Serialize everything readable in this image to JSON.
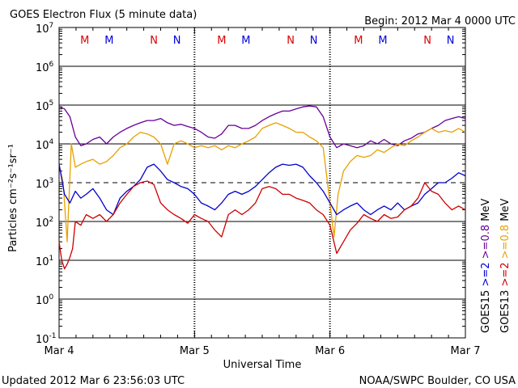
{
  "header": {
    "title": "GOES Electron Flux (5 minute data)",
    "begin": "Begin: 2012 Mar 4 0000 UTC"
  },
  "footer": {
    "updated": "Updated 2012 Mar  6 23:56:03 UTC",
    "credit": "NOAA/SWPC Boulder, CO USA"
  },
  "chart_data": {
    "type": "line",
    "title": "GOES Electron Flux (5 minute data)",
    "xlabel": "Universal Time",
    "ylabel": "Particles cm⁻²s⁻¹sr⁻¹",
    "yscale": "log",
    "ylim": [
      0.1,
      10000000
    ],
    "yticks": [
      {
        "base": "10",
        "exp": "7"
      },
      {
        "base": "10",
        "exp": "6"
      },
      {
        "base": "10",
        "exp": "5"
      },
      {
        "base": "10",
        "exp": "4"
      },
      {
        "base": "10",
        "exp": "3"
      },
      {
        "base": "10",
        "exp": "2"
      },
      {
        "base": "10",
        "exp": "1"
      },
      {
        "base": "10",
        "exp": "0"
      },
      {
        "base": "10",
        "exp": "-1"
      }
    ],
    "xlim_days": [
      0,
      3
    ],
    "xticks": [
      "Mar 4",
      "Mar 5",
      "Mar 6",
      "Mar 7"
    ],
    "grid": true,
    "threshold_line": 1000,
    "markers": [
      {
        "label": "M",
        "day": 0.19,
        "color": "#dd0000"
      },
      {
        "label": "M",
        "day": 0.37,
        "color": "#0000dd"
      },
      {
        "label": "N",
        "day": 0.7,
        "color": "#dd0000"
      },
      {
        "label": "N",
        "day": 0.87,
        "color": "#0000dd"
      },
      {
        "label": "M",
        "day": 1.2,
        "color": "#dd0000"
      },
      {
        "label": "M",
        "day": 1.38,
        "color": "#0000dd"
      },
      {
        "label": "N",
        "day": 1.71,
        "color": "#dd0000"
      },
      {
        "label": "N",
        "day": 1.88,
        "color": "#0000dd"
      },
      {
        "label": "M",
        "day": 2.21,
        "color": "#dd0000"
      },
      {
        "label": "M",
        "day": 2.39,
        "color": "#0000dd"
      },
      {
        "label": "N",
        "day": 2.72,
        "color": "#dd0000"
      },
      {
        "label": "N",
        "day": 2.89,
        "color": "#0000dd"
      }
    ],
    "legend": [
      {
        "label": "GOES15",
        "color": "#000000"
      },
      {
        "label": ">=2",
        "color": "#0000cc"
      },
      {
        "label": ">=0.8",
        "color": "#660099"
      },
      {
        "label": "MeV",
        "color": "#000000"
      },
      {
        "label": "GOES13",
        "color": "#000000"
      },
      {
        "label": ">=2",
        "color": "#cc0000"
      },
      {
        "label": ">=0.8",
        "color": "#e8a000"
      },
      {
        "label": "MeV",
        "color": "#000000"
      }
    ],
    "series": [
      {
        "name": "GOES15 >=0.8 MeV",
        "color": "#660099",
        "x": [
          0,
          0.04,
          0.08,
          0.12,
          0.16,
          0.2,
          0.25,
          0.3,
          0.35,
          0.4,
          0.45,
          0.5,
          0.55,
          0.6,
          0.65,
          0.7,
          0.75,
          0.8,
          0.85,
          0.9,
          0.95,
          1.0,
          1.05,
          1.1,
          1.15,
          1.2,
          1.25,
          1.3,
          1.35,
          1.4,
          1.45,
          1.5,
          1.55,
          1.6,
          1.65,
          1.7,
          1.75,
          1.8,
          1.85,
          1.9,
          1.95,
          2.0,
          2.05,
          2.1,
          2.15,
          2.2,
          2.25,
          2.3,
          2.35,
          2.4,
          2.45,
          2.5,
          2.55,
          2.6,
          2.65,
          2.7,
          2.75,
          2.8,
          2.85,
          2.9,
          2.95,
          3.0
        ],
        "y": [
          90000,
          80000,
          50000,
          15000,
          9000,
          10000,
          13000,
          15000,
          10000,
          15000,
          20000,
          25000,
          30000,
          35000,
          40000,
          40000,
          45000,
          35000,
          30000,
          32000,
          28000,
          25000,
          20000,
          15000,
          14000,
          18000,
          30000,
          30000,
          25000,
          25000,
          30000,
          40000,
          50000,
          60000,
          70000,
          70000,
          80000,
          90000,
          95000,
          90000,
          50000,
          15000,
          8000,
          10000,
          9000,
          8000,
          9000,
          12000,
          10000,
          13000,
          10000,
          9000,
          12000,
          14000,
          18000,
          20000,
          25000,
          30000,
          40000,
          45000,
          50000,
          45000
        ]
      },
      {
        "name": "GOES13 >=0.8 MeV",
        "color": "#e8a000",
        "x": [
          0,
          0.03,
          0.06,
          0.09,
          0.12,
          0.16,
          0.2,
          0.25,
          0.3,
          0.35,
          0.4,
          0.45,
          0.5,
          0.55,
          0.6,
          0.65,
          0.7,
          0.75,
          0.8,
          0.85,
          0.9,
          0.95,
          1.0,
          1.05,
          1.1,
          1.15,
          1.2,
          1.25,
          1.3,
          1.35,
          1.4,
          1.45,
          1.5,
          1.55,
          1.6,
          1.65,
          1.7,
          1.75,
          1.8,
          1.85,
          1.9,
          1.95,
          2.0,
          2.03,
          2.06,
          2.1,
          2.15,
          2.2,
          2.25,
          2.3,
          2.35,
          2.4,
          2.45,
          2.5,
          2.55,
          2.6,
          2.65,
          2.7,
          2.75,
          2.8,
          2.85,
          2.9,
          2.95,
          3.0
        ],
        "y": [
          3000,
          1000,
          30,
          10000,
          2500,
          3000,
          3500,
          4000,
          3000,
          3500,
          5000,
          8000,
          10000,
          15000,
          20000,
          18000,
          15000,
          10000,
          3000,
          10000,
          12000,
          10000,
          8000,
          9000,
          8000,
          9000,
          7000,
          9000,
          8000,
          10000,
          12000,
          15000,
          25000,
          30000,
          35000,
          30000,
          25000,
          20000,
          20000,
          15000,
          12000,
          8000,
          300,
          40,
          500,
          2000,
          3500,
          5000,
          4500,
          5000,
          7000,
          6000,
          8000,
          10000,
          9000,
          12000,
          15000,
          20000,
          25000,
          20000,
          22000,
          20000,
          25000,
          20000
        ]
      },
      {
        "name": "GOES15 >=2 MeV",
        "color": "#0000cc",
        "x": [
          0,
          0.04,
          0.08,
          0.12,
          0.16,
          0.2,
          0.25,
          0.3,
          0.35,
          0.4,
          0.45,
          0.5,
          0.55,
          0.6,
          0.65,
          0.7,
          0.75,
          0.8,
          0.85,
          0.9,
          0.95,
          1.0,
          1.05,
          1.1,
          1.15,
          1.2,
          1.25,
          1.3,
          1.35,
          1.4,
          1.45,
          1.5,
          1.55,
          1.6,
          1.65,
          1.7,
          1.75,
          1.8,
          1.85,
          1.9,
          1.95,
          2.0,
          2.05,
          2.1,
          2.15,
          2.2,
          2.25,
          2.3,
          2.35,
          2.4,
          2.45,
          2.5,
          2.55,
          2.6,
          2.65,
          2.7,
          2.75,
          2.8,
          2.85,
          2.9,
          2.95,
          3.0
        ],
        "y": [
          3000,
          500,
          300,
          600,
          400,
          500,
          700,
          400,
          200,
          150,
          400,
          600,
          800,
          1200,
          2500,
          3000,
          2000,
          1200,
          1000,
          800,
          700,
          500,
          300,
          250,
          200,
          300,
          500,
          600,
          500,
          600,
          800,
          1200,
          1800,
          2500,
          3000,
          2800,
          3000,
          2500,
          1500,
          1000,
          600,
          300,
          150,
          200,
          250,
          300,
          200,
          150,
          200,
          250,
          200,
          300,
          200,
          250,
          300,
          500,
          700,
          1000,
          1000,
          1300,
          1800,
          1500
        ]
      },
      {
        "name": "GOES13 >=2 MeV",
        "color": "#cc0000",
        "x": [
          0,
          0.02,
          0.04,
          0.06,
          0.08,
          0.1,
          0.12,
          0.16,
          0.2,
          0.25,
          0.3,
          0.35,
          0.4,
          0.45,
          0.5,
          0.55,
          0.6,
          0.65,
          0.7,
          0.75,
          0.8,
          0.85,
          0.9,
          0.95,
          1.0,
          1.05,
          1.1,
          1.15,
          1.2,
          1.25,
          1.3,
          1.35,
          1.4,
          1.45,
          1.5,
          1.55,
          1.6,
          1.65,
          1.7,
          1.75,
          1.8,
          1.85,
          1.9,
          1.95,
          2.0,
          2.05,
          2.1,
          2.15,
          2.2,
          2.25,
          2.3,
          2.35,
          2.4,
          2.45,
          2.5,
          2.55,
          2.6,
          2.65,
          2.7,
          2.75,
          2.8,
          2.85,
          2.9,
          2.95,
          3.0
        ],
        "y": [
          30,
          10,
          6,
          8,
          12,
          20,
          100,
          80,
          150,
          120,
          150,
          100,
          150,
          300,
          500,
          800,
          1000,
          1100,
          900,
          300,
          200,
          150,
          120,
          90,
          150,
          120,
          100,
          60,
          40,
          150,
          200,
          150,
          200,
          300,
          700,
          800,
          700,
          500,
          500,
          400,
          350,
          300,
          200,
          150,
          80,
          15,
          30,
          60,
          90,
          150,
          120,
          100,
          150,
          120,
          130,
          200,
          250,
          400,
          1000,
          600,
          500,
          300,
          200,
          250,
          200
        ]
      }
    ]
  }
}
